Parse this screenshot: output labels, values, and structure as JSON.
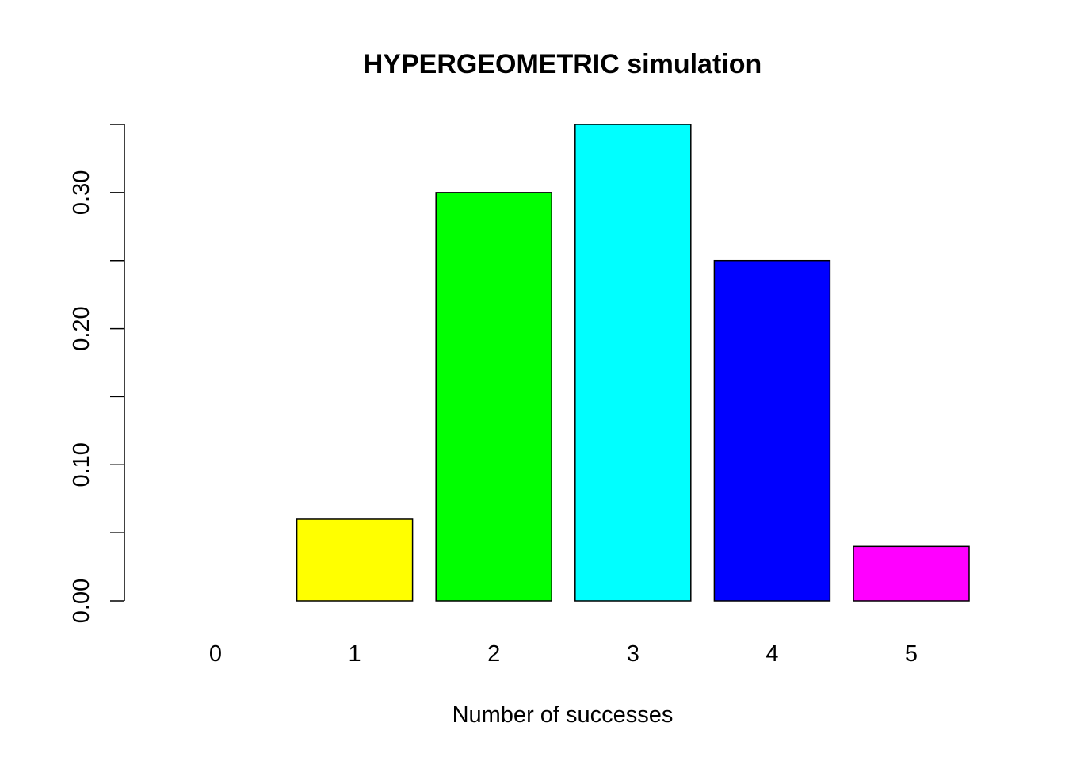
{
  "chart_data": {
    "type": "bar",
    "title": "HYPERGEOMETRIC simulation",
    "xlabel": "Number of successes",
    "ylabel": "",
    "categories": [
      "0",
      "1",
      "2",
      "3",
      "4",
      "5"
    ],
    "values": [
      0.0,
      0.06,
      0.3,
      0.35,
      0.25,
      0.04
    ],
    "colors": [
      "#FF0000",
      "#FFFF00",
      "#00FF00",
      "#00FFFF",
      "#0000FF",
      "#FF00FF"
    ],
    "ylim": [
      0,
      0.35
    ],
    "yticks": [
      0.0,
      0.05,
      0.1,
      0.15,
      0.2,
      0.25,
      0.3,
      0.35
    ],
    "ytick_labels": [
      "0.00",
      "",
      "0.10",
      "",
      "0.20",
      "",
      "0.30",
      ""
    ],
    "grid": false,
    "legend": "none"
  }
}
